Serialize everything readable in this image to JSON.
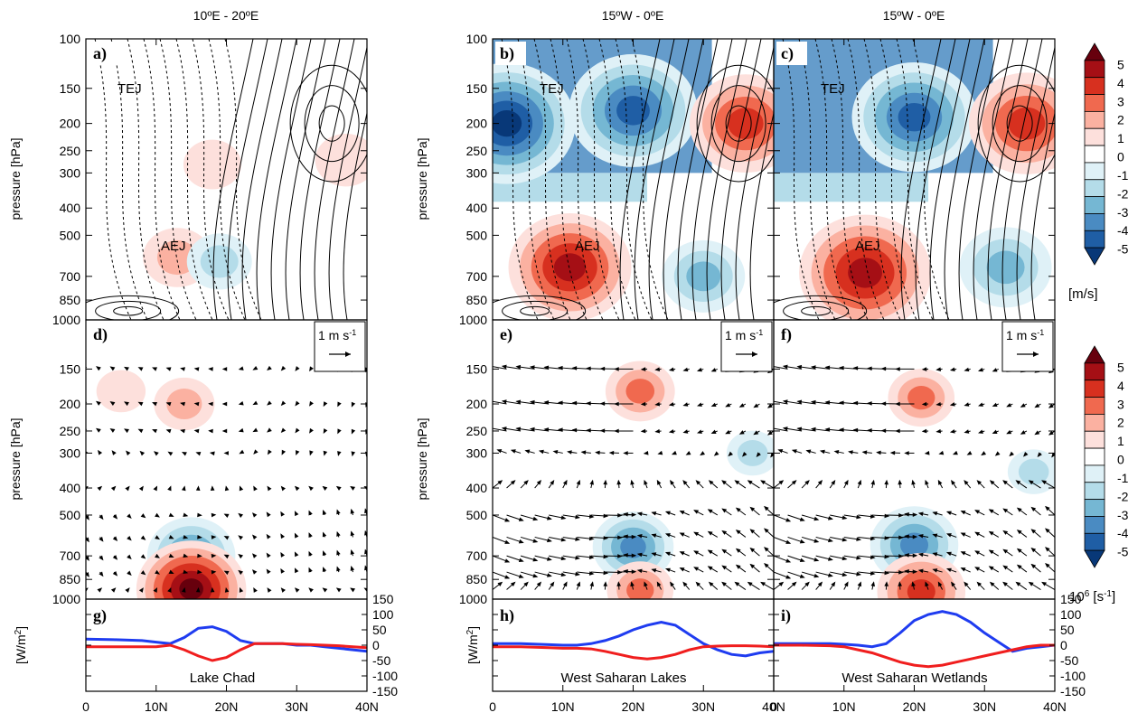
{
  "chart_data": [
    {
      "type": "heatmap",
      "row": "top",
      "column_titles": [
        "10ºE - 20ºE",
        "15ºW - 0ºE",
        "15ºW - 0ºE"
      ],
      "panel_labels": [
        "a)",
        "b)",
        "c)"
      ],
      "ylabel": "pressure [hPa]",
      "yticks": [
        100,
        150,
        200,
        250,
        300,
        400,
        500,
        700,
        850,
        1000
      ],
      "ylim": [
        1000,
        100
      ],
      "y_scale": "log",
      "jet_labels": {
        "tej": "TEJ",
        "aej": "AEJ"
      },
      "colorbar": {
        "ticks": [
          "5",
          "4",
          "3",
          "2",
          "1",
          "0",
          "-1",
          "-2",
          "-3",
          "-4",
          "-5"
        ],
        "unit": "[m/s]"
      },
      "features": [
        {
          "panel": "a",
          "lat": 18,
          "p": 280,
          "value": 0.6
        },
        {
          "panel": "a",
          "lat": 13,
          "p": 600,
          "value": 1.2
        },
        {
          "panel": "a",
          "lat": 19,
          "p": 620,
          "value": -1.0
        },
        {
          "panel": "a",
          "lat": 37,
          "p": 270,
          "value": 0.8
        },
        {
          "panel": "b",
          "lat": 2,
          "p": 200,
          "value": -5.0
        },
        {
          "panel": "b",
          "lat": 20,
          "p": 180,
          "value": -4.5
        },
        {
          "panel": "b",
          "lat": 36,
          "p": 200,
          "value": 3.6
        },
        {
          "panel": "b",
          "lat": 11,
          "p": 650,
          "value": 4.2
        },
        {
          "panel": "b",
          "lat": 30,
          "p": 700,
          "value": -2.0
        },
        {
          "panel": "c",
          "lat": 20,
          "p": 190,
          "value": -4.3
        },
        {
          "panel": "c",
          "lat": 36,
          "p": 200,
          "value": 3.8
        },
        {
          "panel": "c",
          "lat": 13,
          "p": 680,
          "value": 4.7
        },
        {
          "panel": "c",
          "lat": 33,
          "p": 650,
          "value": -2.5
        }
      ]
    },
    {
      "type": "heatmap",
      "row": "middle",
      "panel_labels": [
        "d)",
        "e)",
        "f)"
      ],
      "ylabel": "pressure [hPa]",
      "yticks": [
        150,
        200,
        250,
        300,
        400,
        500,
        700,
        850,
        1000
      ],
      "ylim": [
        1000,
        100
      ],
      "y_scale": "log",
      "vector_key": "1 m s",
      "vector_key_exp": "-1",
      "colorbar": {
        "ticks": [
          "5",
          "4",
          "3",
          "2",
          "1",
          "0",
          "-1",
          "-2",
          "-3",
          "-4",
          "-5"
        ],
        "unit": "10",
        "unit_exp": "6",
        "unit_suffix": " [s",
        "unit_suffix_exp": "-1",
        "unit_close": "]"
      },
      "features": [
        {
          "panel": "d",
          "lat": 5,
          "p": 180,
          "value": 0.8
        },
        {
          "panel": "d",
          "lat": 14,
          "p": 200,
          "value": 1.6
        },
        {
          "panel": "d",
          "lat": 15,
          "p": 700,
          "value": -3.5
        },
        {
          "panel": "d",
          "lat": 15,
          "p": 920,
          "value": 5.0
        },
        {
          "panel": "e",
          "lat": 21,
          "p": 180,
          "value": 2.2
        },
        {
          "panel": "e",
          "lat": 20,
          "p": 650,
          "value": -3.0
        },
        {
          "panel": "e",
          "lat": 21,
          "p": 930,
          "value": 2.0
        },
        {
          "panel": "e",
          "lat": 37,
          "p": 300,
          "value": -1.0
        },
        {
          "panel": "f",
          "lat": 21,
          "p": 190,
          "value": 2.0
        },
        {
          "panel": "f",
          "lat": 20,
          "p": 640,
          "value": -3.5
        },
        {
          "panel": "f",
          "lat": 21,
          "p": 940,
          "value": 3.5
        },
        {
          "panel": "f",
          "lat": 37,
          "p": 350,
          "value": -1.0
        }
      ]
    },
    {
      "type": "line",
      "row": "bottom",
      "panel_labels": [
        "g)",
        "h)",
        "i)"
      ],
      "panel_captions": [
        "Lake Chad",
        "West Saharan Lakes",
        "West Saharan Wetlands"
      ],
      "ylabel": "[W/m",
      "ylabel_exp": "2",
      "ylabel_close": "]",
      "yticks": [
        "150",
        "100",
        "50",
        "0",
        "-50",
        "-100",
        "-150"
      ],
      "ylim": [
        -150,
        150
      ],
      "xticks": [
        "0",
        "10N",
        "20N",
        "30N",
        "40N"
      ],
      "xlim": [
        0,
        40
      ],
      "x": [
        0,
        4,
        8,
        10,
        12,
        14,
        16,
        18,
        20,
        22,
        24,
        26,
        28,
        30,
        32,
        34,
        36,
        38,
        40
      ],
      "series": [
        {
          "color": "#1f3cf0",
          "panels": [
            [
              20,
              18,
              15,
              10,
              5,
              25,
              55,
              60,
              45,
              15,
              5,
              5,
              5,
              0,
              0,
              -5,
              -10,
              -15,
              -20
            ],
            [
              5,
              5,
              2,
              0,
              0,
              5,
              15,
              30,
              50,
              65,
              75,
              65,
              35,
              5,
              -15,
              -30,
              -35,
              -25,
              -20
            ],
            [
              5,
              5,
              5,
              3,
              0,
              -5,
              5,
              40,
              80,
              100,
              110,
              100,
              75,
              40,
              10,
              -20,
              -10,
              -5,
              0
            ]
          ]
        },
        {
          "color": "#f01e1e",
          "panels": [
            [
              -5,
              -5,
              -5,
              -5,
              0,
              -15,
              -35,
              -50,
              -40,
              -15,
              5,
              5,
              5,
              3,
              2,
              0,
              -2,
              -5,
              -8
            ],
            [
              -5,
              -5,
              -8,
              -10,
              -10,
              -12,
              -20,
              -30,
              -40,
              -45,
              -40,
              -30,
              -15,
              -5,
              -3,
              -2,
              -2,
              -3,
              -5
            ],
            [
              0,
              0,
              -2,
              -5,
              -15,
              -25,
              -40,
              -55,
              -65,
              -70,
              -65,
              -55,
              -45,
              -35,
              -25,
              -15,
              -5,
              0,
              0
            ]
          ]
        }
      ]
    }
  ]
}
